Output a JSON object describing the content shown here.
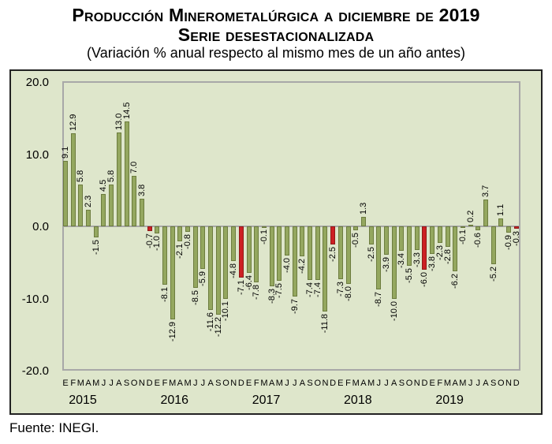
{
  "header": {
    "title_line1": "Producción Minerometalúrgica a diciembre de 2019",
    "title_line2": "Serie desestacionalizada",
    "subtitle": "(Variación % anual respecto al mismo mes de un año antes)"
  },
  "footer": {
    "source": "Fuente: INEGI."
  },
  "chart_data": {
    "type": "bar",
    "title": "Producción Minerometalúrgica a diciembre de 2019 — Serie desestacionalizada",
    "xlabel": "",
    "ylabel": "Variación % anual",
    "ylim": [
      -20,
      20
    ],
    "yticks": [
      "20.0",
      "10.0",
      "0.0",
      "-10.0",
      "-20.0"
    ],
    "grid": false,
    "legend": "none",
    "month_letters": [
      "E",
      "F",
      "M",
      "A",
      "M",
      "J",
      "J",
      "A",
      "S",
      "O",
      "N",
      "D"
    ],
    "december_highlighted_in_red": true,
    "series": [
      {
        "name": "2015",
        "values": [
          9.1,
          12.9,
          5.8,
          2.3,
          -1.5,
          4.5,
          5.8,
          13.0,
          14.5,
          7.0,
          3.8,
          -0.7
        ]
      },
      {
        "name": "2016",
        "values": [
          -1.0,
          -8.1,
          -12.9,
          -2.1,
          -0.8,
          -8.5,
          -5.9,
          -11.6,
          -12.2,
          -10.1,
          -4.8,
          -7.1
        ]
      },
      {
        "name": "2017",
        "values": [
          -6.4,
          -7.8,
          -0.1,
          -8.3,
          -7.5,
          -4.0,
          -9.7,
          -4.2,
          -7.4,
          -7.4,
          -11.8,
          -2.5
        ]
      },
      {
        "name": "2018",
        "values": [
          -7.3,
          -8.0,
          -0.5,
          1.3,
          -2.5,
          -8.7,
          -3.9,
          -10.0,
          -3.4,
          -5.5,
          -3.3,
          -6.0
        ]
      },
      {
        "name": "2019",
        "values": [
          -3.8,
          -2.3,
          -2.8,
          -6.2,
          -0.1,
          0.2,
          -0.6,
          3.7,
          -5.2,
          1.1,
          -0.9,
          -0.3
        ]
      }
    ],
    "colors": {
      "bar": "#94a75f",
      "bar_border": "#6c7c3e",
      "december_bar": "#cd2024",
      "december_bar_border": "#8f1a18",
      "figure_background": "#dee6cb",
      "axis_border": "#a8a8a8"
    }
  }
}
